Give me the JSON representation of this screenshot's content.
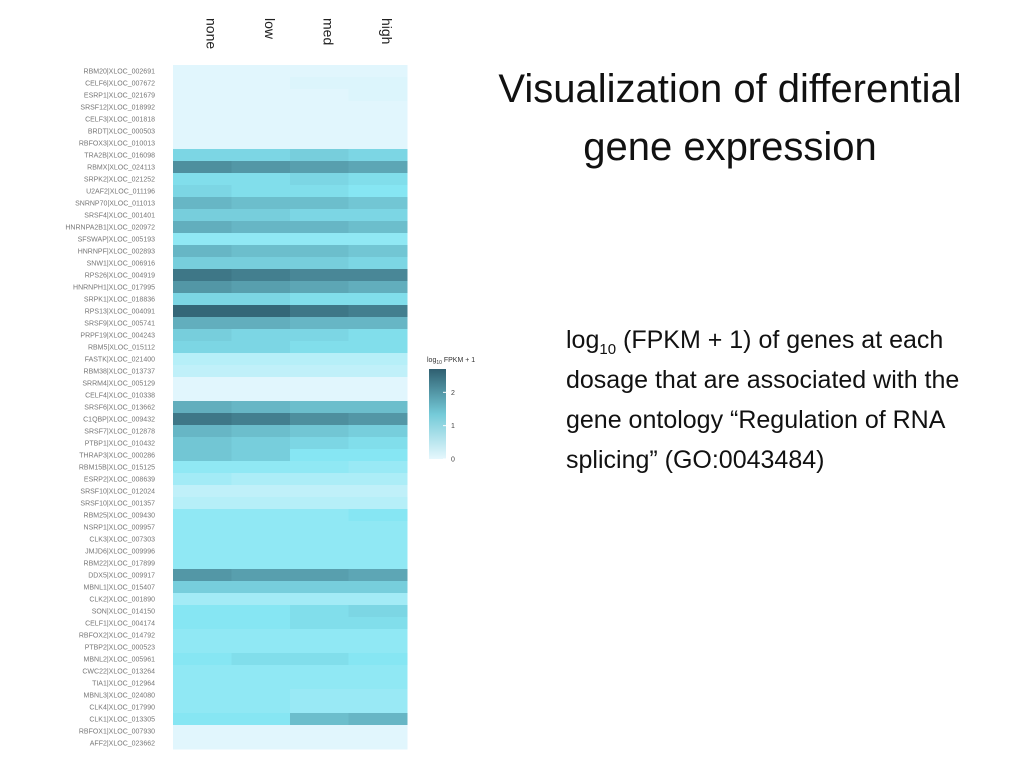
{
  "slide": {
    "title": "Visualization of differential gene expression",
    "body_prefix": "log",
    "body_sub": "10",
    "body_rest": " (FPKM + 1) of genes at each dosage that are associated with the gene ontology “Regulation of RNA splicing” (GO:0043484)"
  },
  "colors": {
    "low": "#e6f7fd",
    "mid": "#86e6f3",
    "high": "#2f5f70"
  },
  "chart_data": {
    "type": "heatmap",
    "title": "",
    "columns": [
      "none",
      "low",
      "med",
      "high"
    ],
    "rows": [
      "RBM20|XLOC_002691",
      "CELF6|XLOC_007672",
      "ESRP1|XLOC_021679",
      "SRSF12|XLOC_018992",
      "CELF3|XLOC_001818",
      "BRDT|XLOC_000503",
      "RBFOX3|XLOC_010013",
      "TRA2B|XLOC_016098",
      "RBMX|XLOC_024113",
      "SRPK2|XLOC_021252",
      "U2AF2|XLOC_011196",
      "SNRNP70|XLOC_011013",
      "SRSF4|XLOC_001401",
      "HNRNPA2B1|XLOC_020972",
      "SFSWAP|XLOC_005193",
      "HNRNPF|XLOC_002893",
      "SNW1|XLOC_006916",
      "RPS26|XLOC_004919",
      "HNRNPH1|XLOC_017995",
      "SRPK1|XLOC_018836",
      "RPS13|XLOC_004091",
      "SRSF9|XLOC_005741",
      "PRPF19|XLOC_004243",
      "RBM5|XLOC_015112",
      "FASTK|XLOC_021400",
      "RBM38|XLOC_013737",
      "SRRM4|XLOC_005129",
      "CELF4|XLOC_010338",
      "SRSF6|XLOC_013662",
      "C1QBP|XLOC_009432",
      "SRSF7|XLOC_012878",
      "PTBP1|XLOC_010432",
      "THRAP3|XLOC_000286",
      "RBM15B|XLOC_015125",
      "ESRP2|XLOC_008639",
      "SRSF10|XLOC_012024",
      "SRSF10|XLOC_001357",
      "RBM25|XLOC_009430",
      "NSRP1|XLOC_009957",
      "CLK3|XLOC_007303",
      "JMJD6|XLOC_009996",
      "RBM22|XLOC_017899",
      "DDX5|XLOC_009917",
      "MBNL1|XLOC_015407",
      "CLK2|XLOC_001890",
      "SON|XLOC_014150",
      "CELF1|XLOC_004174",
      "RBFOX2|XLOC_014792",
      "PTBP2|XLOC_000523",
      "MBNL2|XLOC_005961",
      "CWC22|XLOC_013264",
      "TIA1|XLOC_012964",
      "MBNL3|XLOC_024080",
      "CLK4|XLOC_017990",
      "CLK1|XLOC_013305",
      "RBFOX1|XLOC_007930",
      "AFF2|XLOC_023662"
    ],
    "values": [
      [
        0.05,
        0.05,
        0.05,
        0.05
      ],
      [
        0.05,
        0.05,
        0.1,
        0.1
      ],
      [
        0.05,
        0.05,
        0.05,
        0.1
      ],
      [
        0.05,
        0.05,
        0.05,
        0.05
      ],
      [
        0.05,
        0.05,
        0.05,
        0.05
      ],
      [
        0.05,
        0.05,
        0.05,
        0.05
      ],
      [
        0.05,
        0.05,
        0.05,
        0.05
      ],
      [
        1.2,
        1.2,
        1.3,
        1.2
      ],
      [
        2.1,
        2.0,
        1.9,
        1.8
      ],
      [
        1.1,
        1.1,
        1.2,
        1.1
      ],
      [
        1.2,
        1.1,
        1.1,
        1.0
      ],
      [
        1.6,
        1.5,
        1.5,
        1.4
      ],
      [
        1.3,
        1.3,
        1.2,
        1.2
      ],
      [
        1.7,
        1.6,
        1.6,
        1.5
      ],
      [
        0.9,
        0.9,
        0.9,
        0.9
      ],
      [
        1.6,
        1.5,
        1.5,
        1.4
      ],
      [
        1.3,
        1.3,
        1.3,
        1.2
      ],
      [
        2.4,
        2.3,
        2.2,
        2.2
      ],
      [
        2.0,
        1.9,
        1.8,
        1.7
      ],
      [
        1.2,
        1.2,
        1.1,
        1.1
      ],
      [
        2.6,
        2.6,
        2.4,
        2.3
      ],
      [
        1.7,
        1.7,
        1.6,
        1.6
      ],
      [
        1.3,
        1.2,
        1.2,
        1.1
      ],
      [
        1.2,
        1.2,
        1.1,
        1.1
      ],
      [
        0.5,
        0.5,
        0.5,
        0.5
      ],
      [
        0.4,
        0.4,
        0.4,
        0.4
      ],
      [
        0.05,
        0.05,
        0.05,
        0.05
      ],
      [
        0.05,
        0.05,
        0.05,
        0.05
      ],
      [
        1.7,
        1.6,
        1.5,
        1.5
      ],
      [
        2.4,
        2.3,
        2.1,
        2.0
      ],
      [
        1.6,
        1.5,
        1.4,
        1.3
      ],
      [
        1.4,
        1.3,
        1.2,
        1.1
      ],
      [
        1.4,
        1.3,
        1.0,
        1.0
      ],
      [
        0.9,
        0.9,
        0.9,
        0.8
      ],
      [
        0.7,
        0.6,
        0.6,
        0.6
      ],
      [
        0.4,
        0.4,
        0.4,
        0.4
      ],
      [
        0.5,
        0.5,
        0.5,
        0.5
      ],
      [
        0.9,
        0.9,
        0.9,
        1.0
      ],
      [
        0.9,
        0.9,
        0.9,
        0.9
      ],
      [
        0.9,
        0.9,
        0.9,
        0.9
      ],
      [
        0.9,
        0.9,
        0.9,
        0.9
      ],
      [
        0.9,
        0.9,
        0.9,
        0.9
      ],
      [
        2.0,
        1.9,
        1.9,
        1.8
      ],
      [
        1.3,
        1.3,
        1.3,
        1.3
      ],
      [
        0.7,
        0.7,
        0.7,
        0.7
      ],
      [
        1.0,
        1.0,
        1.1,
        1.2
      ],
      [
        1.0,
        1.0,
        1.1,
        1.1
      ],
      [
        0.9,
        0.9,
        0.9,
        0.9
      ],
      [
        0.9,
        0.9,
        0.9,
        0.9
      ],
      [
        1.0,
        1.1,
        1.1,
        1.0
      ],
      [
        0.9,
        0.9,
        0.9,
        0.9
      ],
      [
        0.9,
        0.9,
        0.9,
        0.9
      ],
      [
        0.9,
        0.9,
        0.8,
        0.8
      ],
      [
        0.9,
        0.9,
        0.8,
        0.8
      ],
      [
        1.0,
        1.0,
        1.5,
        1.6
      ],
      [
        0.05,
        0.05,
        0.05,
        0.05
      ],
      [
        0.05,
        0.05,
        0.05,
        0.05
      ]
    ],
    "legend": {
      "title_prefix": "log",
      "title_sub": "10",
      "title_rest": " FPKM + 1",
      "ticks": [
        2,
        1,
        0
      ],
      "range": [
        0,
        2.7
      ],
      "placement": "right"
    }
  }
}
